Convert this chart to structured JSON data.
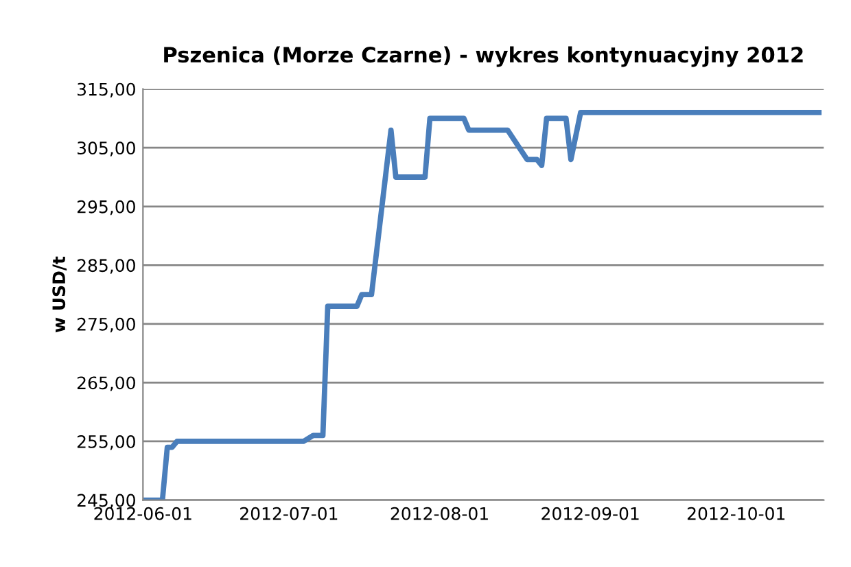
{
  "chart_data": {
    "type": "line",
    "title": "Pszenica (Morze Czarne) - wykres kontynuacyjny 2012",
    "ylabel": "w USD/t",
    "x": [
      "2012-06-01",
      "2012-06-05",
      "2012-06-06",
      "2012-06-07",
      "2012-06-08",
      "2012-07-04",
      "2012-07-06",
      "2012-07-08",
      "2012-07-09",
      "2012-07-15",
      "2012-07-16",
      "2012-07-18",
      "2012-07-22",
      "2012-07-23",
      "2012-07-29",
      "2012-07-30",
      "2012-08-06",
      "2012-08-07",
      "2012-08-15",
      "2012-08-19",
      "2012-08-21",
      "2012-08-22",
      "2012-08-23",
      "2012-08-27",
      "2012-08-28",
      "2012-08-30",
      "2012-10-18"
    ],
    "series": [
      {
        "color": "#4a7ebb",
        "values": [
          245,
          245,
          254,
          254,
          255,
          255,
          256,
          256,
          278,
          278,
          280,
          280,
          308,
          300,
          300,
          310,
          310,
          308,
          308,
          303,
          303,
          302,
          310,
          310,
          303,
          311,
          311
        ]
      }
    ],
    "xlim": [
      "2012-06-01",
      "2012-10-19"
    ],
    "xticks": [
      "2012-06-01",
      "2012-07-01",
      "2012-08-01",
      "2012-09-01",
      "2012-10-01"
    ],
    "ylim": [
      245,
      315
    ],
    "yticks": [
      {
        "value": 245,
        "label": "245,00"
      },
      {
        "value": 255,
        "label": "255,00"
      },
      {
        "value": 265,
        "label": "265,00"
      },
      {
        "value": 275,
        "label": "275,00"
      },
      {
        "value": 285,
        "label": "285,00"
      },
      {
        "value": 295,
        "label": "295,00"
      },
      {
        "value": 305,
        "label": "305,00"
      },
      {
        "value": 315,
        "label": "315,00"
      }
    ],
    "grid": "y",
    "legend": false,
    "marker": "none",
    "line_style": "solid"
  }
}
